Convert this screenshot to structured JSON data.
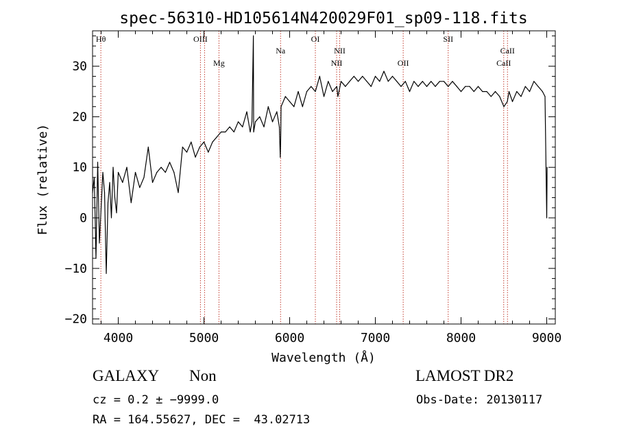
{
  "chart_data": {
    "type": "line",
    "title": "spec-56310-HD105614N420029F01_sp09-118.fits",
    "xlabel": "Wavelength (Å)",
    "ylabel": "Flux (relative)",
    "xlim": [
      3700,
      9100
    ],
    "ylim": [
      -21,
      37
    ],
    "x_ticks": [
      4000,
      5000,
      6000,
      7000,
      8000,
      9000
    ],
    "x_tick_labels": [
      "4000",
      "5000",
      "6000",
      "7000",
      "8000",
      "9000"
    ],
    "y_ticks": [
      -20,
      -10,
      0,
      10,
      20,
      30
    ],
    "y_tick_labels": [
      "−20",
      "−10",
      "0",
      "10",
      "20",
      "30"
    ],
    "grid": false,
    "line_color": "#000000",
    "marker_color": "#c0392b",
    "series": [
      {
        "x": [
          3700,
          3720,
          3740,
          3760,
          3780,
          3800,
          3820,
          3840,
          3860,
          3880,
          3900,
          3920,
          3940,
          3960,
          3980,
          4000,
          4050,
          4100,
          4150,
          4200,
          4250,
          4300,
          4350,
          4400,
          4450,
          4500,
          4550,
          4600,
          4650,
          4700,
          4750,
          4800,
          4850,
          4900,
          4950,
          5000,
          5050,
          5100,
          5150,
          5200,
          5250,
          5300,
          5350,
          5400,
          5450,
          5500,
          5540,
          5560,
          5577,
          5580,
          5600,
          5650,
          5700,
          5750,
          5800,
          5850,
          5880,
          5890,
          5895,
          5900,
          5950,
          6000,
          6050,
          6100,
          6150,
          6200,
          6250,
          6300,
          6350,
          6400,
          6450,
          6500,
          6550,
          6563,
          6600,
          6650,
          6700,
          6750,
          6800,
          6850,
          6900,
          6950,
          7000,
          7050,
          7100,
          7150,
          7200,
          7250,
          7300,
          7350,
          7400,
          7450,
          7500,
          7550,
          7600,
          7650,
          7700,
          7750,
          7800,
          7850,
          7900,
          7950,
          8000,
          8050,
          8100,
          8150,
          8200,
          8250,
          8300,
          8350,
          8400,
          8450,
          8500,
          8540,
          8560,
          8600,
          8650,
          8700,
          8750,
          8800,
          8850,
          8900,
          8950,
          8980,
          9000,
          9005
        ],
        "y": [
          5,
          8,
          -8,
          11,
          -5,
          2,
          9,
          5,
          -11,
          3,
          7,
          0,
          10,
          4,
          1,
          9,
          7,
          10,
          3,
          9,
          6,
          8,
          14,
          7,
          9,
          10,
          9,
          11,
          9,
          5,
          14,
          13,
          15,
          12,
          14,
          15,
          13,
          15,
          16,
          17,
          17,
          18,
          17,
          19,
          18,
          21,
          17,
          19,
          36,
          17,
          19,
          20,
          18,
          22,
          19,
          21,
          18,
          12,
          15,
          22,
          24,
          23,
          22,
          25,
          22,
          25,
          26,
          25,
          28,
          24,
          27,
          25,
          26,
          24,
          27,
          26,
          27,
          28,
          27,
          28,
          27,
          26,
          28,
          27,
          29,
          27,
          28,
          27,
          26,
          27,
          25,
          27,
          26,
          27,
          26,
          27,
          26,
          27,
          27,
          26,
          27,
          26,
          25,
          26,
          26,
          25,
          26,
          25,
          25,
          24,
          25,
          24,
          22,
          23,
          25,
          23,
          25,
          24,
          26,
          25,
          27,
          26,
          25,
          24,
          0,
          10
        ]
      }
    ],
    "line_markers": [
      {
        "label": "Hθ",
        "x": 3797,
        "row": "top"
      },
      {
        "label": "OIII",
        "x": 4959,
        "row": "top"
      },
      {
        "label": "OIII",
        "x": 5007,
        "row": "none"
      },
      {
        "label": "Mg",
        "x": 5175,
        "row": "bottom"
      },
      {
        "label": "Na",
        "x": 5894,
        "row": "middle"
      },
      {
        "label": "OI",
        "x": 6300,
        "row": "top"
      },
      {
        "label": "NII",
        "x": 6548,
        "row": "bottom"
      },
      {
        "label": "NII",
        "x": 6584,
        "row": "middle"
      },
      {
        "label": "OII",
        "x": 7325,
        "row": "bottom"
      },
      {
        "label": "SII",
        "x": 7850,
        "row": "top"
      },
      {
        "label": "CaII",
        "x": 8498,
        "row": "bottom"
      },
      {
        "label": "CaII",
        "x": 8542,
        "row": "middle"
      }
    ]
  },
  "info": {
    "object_class": "GALAXY",
    "subclass": "Non",
    "survey": "LAMOST DR2",
    "cz_line": "cz = 0.2 ± −9999.0",
    "obs_date": "Obs-Date: 20130117",
    "coords": "RA = 164.55627, DEC =  43.02713"
  }
}
